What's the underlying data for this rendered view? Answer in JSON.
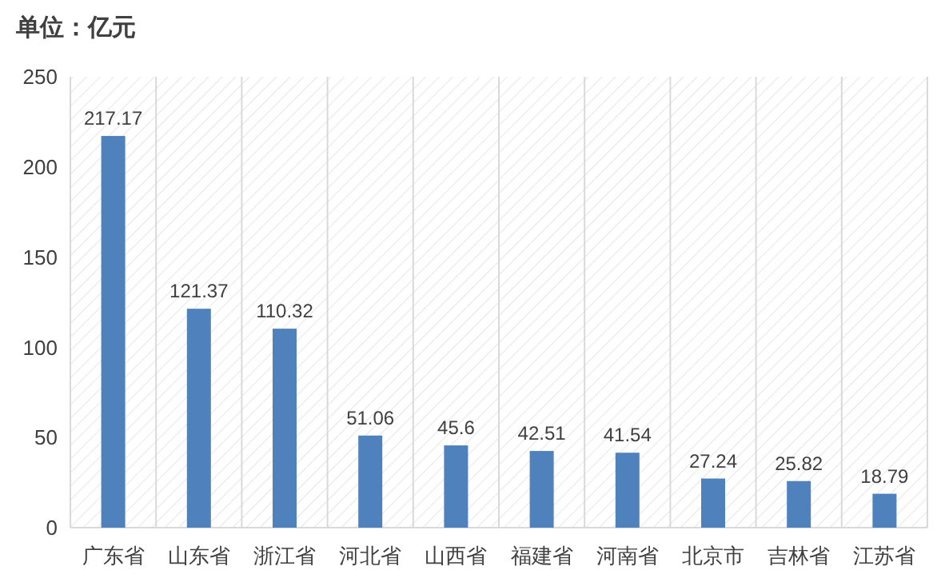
{
  "chart_data": {
    "type": "bar",
    "title": "单位：亿元",
    "categories": [
      "广东省",
      "山东省",
      "浙江省",
      "河北省",
      "山西省",
      "福建省",
      "河南省",
      "北京市",
      "吉林省",
      "江苏省"
    ],
    "values": [
      217.17,
      121.37,
      110.32,
      51.06,
      45.6,
      42.51,
      41.54,
      27.24,
      25.82,
      18.79
    ],
    "color": "#4f81bd",
    "ylim": [
      0,
      250
    ],
    "yticks": [
      0,
      50,
      100,
      150,
      200,
      250
    ],
    "grid": "x",
    "data_labels": true
  }
}
